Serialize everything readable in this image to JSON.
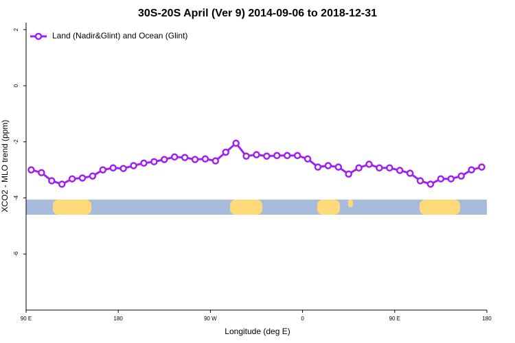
{
  "chart_data": {
    "type": "line",
    "title": "30S-20S April (Ver 9)   2014-09-06 to 2018-12-31",
    "x_label": "Longitude (deg E)",
    "y_label": "XCO2 - MLO trend (ppm)",
    "x": [
      95,
      105,
      115,
      125,
      135,
      145,
      155,
      165,
      175,
      185,
      195,
      205,
      215,
      225,
      235,
      245,
      255,
      265,
      275,
      285,
      295,
      305,
      315,
      325,
      335,
      345,
      355,
      365,
      375,
      385,
      395,
      405,
      415,
      425,
      435,
      445,
      455,
      465,
      475,
      485,
      495,
      505,
      515,
      525,
      535
    ],
    "series": [
      {
        "name": "Land (Nadir&Glint) and Ocean (Glint)",
        "color": "#a020f0",
        "values": [
          -3.0,
          -3.1,
          -3.39,
          -3.51,
          -3.32,
          -3.29,
          -3.22,
          -3.0,
          -2.93,
          -2.95,
          -2.85,
          -2.76,
          -2.71,
          -2.63,
          -2.54,
          -2.56,
          -2.63,
          -2.61,
          -2.68,
          -2.37,
          -2.05,
          -2.51,
          -2.46,
          -2.51,
          -2.49,
          -2.49,
          -2.49,
          -2.61,
          -2.9,
          -2.85,
          -2.9,
          -3.15,
          -2.93,
          -2.8,
          -2.93,
          -2.93,
          -3.02,
          -3.12,
          -3.39,
          -3.51,
          -3.32,
          -3.32,
          -3.22,
          -3.0,
          -2.9
        ]
      }
    ],
    "xlim": [
      90,
      540
    ],
    "xticks": [
      {
        "value": 90,
        "label": "90 E"
      },
      180,
      {
        "value": 270,
        "label": "90 W"
      },
      {
        "value": 360,
        "label": "0"
      },
      {
        "value": 450,
        "label": "90 E"
      },
      {
        "value": 540,
        "label": "180"
      }
    ],
    "ylim": [
      -8,
      2.25
    ],
    "yticks": [
      2,
      0,
      -2,
      -4,
      -6
    ],
    "legend": "top-left"
  }
}
